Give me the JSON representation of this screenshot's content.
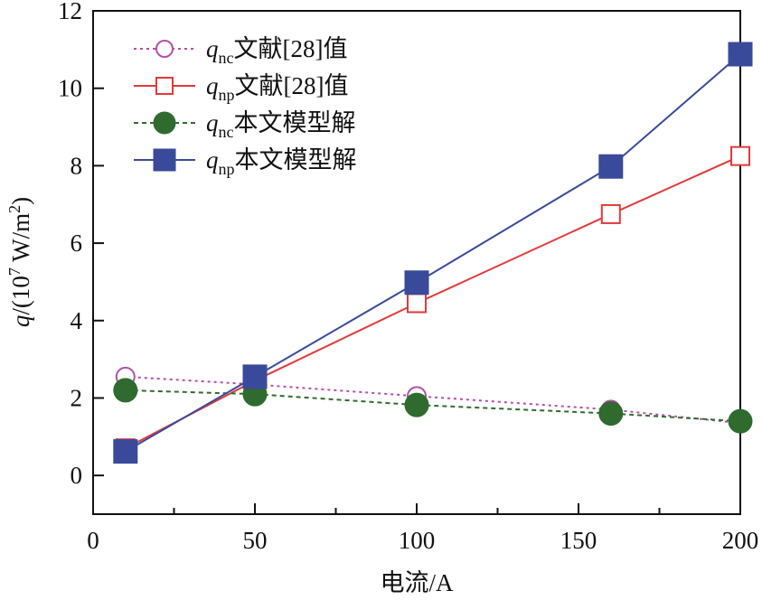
{
  "chart_data": {
    "type": "line",
    "title": "",
    "xlabel": "电流/A",
    "ylabel_prefix": "q",
    "ylabel_unit_open": "/(10",
    "ylabel_exp": "7",
    "ylabel_unit_mid": " W/m",
    "ylabel_exp2": "2",
    "ylabel_unit_close": ")",
    "xlim": [
      0,
      200
    ],
    "ylim": [
      -1,
      12
    ],
    "x_major_ticks": [
      0,
      50,
      100,
      150,
      200
    ],
    "x_minor_ticks": [
      25,
      75,
      125,
      175
    ],
    "y_ticks": [
      0,
      2,
      4,
      6,
      8,
      10,
      12
    ],
    "x_tick_labels": [
      "0",
      "50",
      "100",
      "150",
      "200"
    ],
    "y_tick_labels": [
      "0",
      "2",
      "4",
      "6",
      "8",
      "10",
      "12"
    ],
    "x": [
      10,
      50,
      100,
      160,
      200
    ],
    "series": [
      {
        "name_q": "q",
        "name_sub": "nc",
        "name_text": "文献[28]值",
        "values": [
          2.55,
          2.35,
          2.05,
          1.7,
          1.35
        ],
        "color": "#b44fa8",
        "dash": "dotted",
        "marker": "circle-open"
      },
      {
        "name_q": "q",
        "name_sub": "np",
        "name_text": "文献[28]值",
        "values": [
          0.7,
          2.45,
          4.45,
          6.75,
          8.25
        ],
        "color": "#e03a3a",
        "dash": "solid",
        "marker": "square-open"
      },
      {
        "name_q": "q",
        "name_sub": "nc",
        "name_text": "本文模型解",
        "values": [
          2.2,
          2.1,
          1.82,
          1.6,
          1.4
        ],
        "color": "#2f6b2f",
        "dash": "dashed",
        "marker": "circle-filled"
      },
      {
        "name_q": "q",
        "name_sub": "np",
        "name_text": "本文模型解",
        "values": [
          0.62,
          2.55,
          4.98,
          7.98,
          10.88
        ],
        "color": "#3a4a9a",
        "dash": "solid",
        "marker": "square-filled"
      }
    ],
    "legend_position": "top-left"
  }
}
